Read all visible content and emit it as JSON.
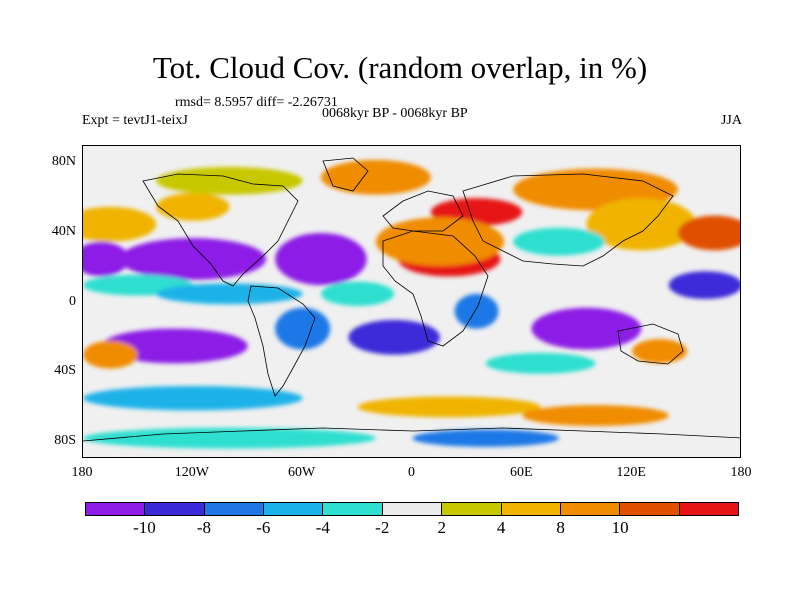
{
  "title": "Tot. Cloud Cov. (random overlap, in %)",
  "stats": "rmsd= 8.5957 diff= -2.26731",
  "experiment": "Expt = tevtJ1-teixJ",
  "period": "0068kyr BP - 0068kyr BP",
  "season": "JJA",
  "axes": {
    "y_ticks": [
      {
        "label": "80N",
        "lat": 80
      },
      {
        "label": "40N",
        "lat": 40
      },
      {
        "label": "0",
        "lat": 0
      },
      {
        "label": "40S",
        "lat": -40
      },
      {
        "label": "80S",
        "lat": -80
      }
    ],
    "x_ticks": [
      {
        "label": "180",
        "lon": -180
      },
      {
        "label": "120W",
        "lon": -120
      },
      {
        "label": "60W",
        "lon": -60
      },
      {
        "label": "0",
        "lon": 0
      },
      {
        "label": "60E",
        "lon": 60
      },
      {
        "label": "120E",
        "lon": 120
      },
      {
        "label": "180",
        "lon": 180
      }
    ],
    "lon_range": [
      -180,
      180
    ],
    "lat_range": [
      -90,
      90
    ]
  },
  "colorbar": {
    "colors": [
      "#8c1ce6",
      "#3c2ad8",
      "#1f78e6",
      "#1ab2e8",
      "#2fdfd0",
      "#ececec",
      "#c8c800",
      "#f0b400",
      "#f08c00",
      "#e05000",
      "#e61414"
    ],
    "labels": [
      {
        "text": "-10",
        "index": 1
      },
      {
        "text": "-8",
        "index": 2
      },
      {
        "text": "-6",
        "index": 3
      },
      {
        "text": "-4",
        "index": 4
      },
      {
        "text": "-2",
        "index": 5
      },
      {
        "text": "2",
        "index": 6
      },
      {
        "text": "4",
        "index": 7
      },
      {
        "text": "8",
        "index": 8
      },
      {
        "text": "10",
        "index": 9
      }
    ]
  },
  "field_regions": [
    {
      "name": "sahara-high",
      "color": "#e61414",
      "lon": 20,
      "lat": 25,
      "rlon": 28,
      "rlat": 10
    },
    {
      "name": "europe-high",
      "color": "#e61414",
      "lon": 35,
      "lat": 52,
      "rlon": 25,
      "rlat": 8
    },
    {
      "name": "n-africa-orange",
      "color": "#f08c00",
      "lon": 15,
      "lat": 35,
      "rlon": 35,
      "rlat": 14
    },
    {
      "name": "siberia-orange",
      "color": "#f08c00",
      "lon": 100,
      "lat": 65,
      "rlon": 45,
      "rlat": 12
    },
    {
      "name": "east-asia-orange",
      "color": "#f0b400",
      "lon": 125,
      "lat": 45,
      "rlon": 30,
      "rlat": 15
    },
    {
      "name": "pacific-n-red",
      "color": "#e05000",
      "lon": 165,
      "lat": 40,
      "rlon": 20,
      "rlat": 10
    },
    {
      "name": "pacific-nw-orange",
      "color": "#f0b400",
      "lon": -165,
      "lat": 45,
      "rlon": 25,
      "rlat": 10
    },
    {
      "name": "greenland-orange",
      "color": "#f08c00",
      "lon": -20,
      "lat": 72,
      "rlon": 30,
      "rlat": 10
    },
    {
      "name": "arctic-yellow",
      "color": "#c8c800",
      "lon": -100,
      "lat": 70,
      "rlon": 40,
      "rlat": 8
    },
    {
      "name": "canada-orange",
      "color": "#f0b400",
      "lon": -120,
      "lat": 55,
      "rlon": 20,
      "rlat": 8
    },
    {
      "name": "east-pacific-purple",
      "color": "#8c1ce6",
      "lon": -120,
      "lat": 25,
      "rlon": 40,
      "rlat": 12
    },
    {
      "name": "atlantic-purple",
      "color": "#8c1ce6",
      "lon": -50,
      "lat": 25,
      "rlon": 25,
      "rlat": 15
    },
    {
      "name": "west-pacific-purple",
      "color": "#8c1ce6",
      "lon": -170,
      "lat": 25,
      "rlon": 15,
      "rlat": 10
    },
    {
      "name": "indian-purple",
      "color": "#8c1ce6",
      "lon": 95,
      "lat": -15,
      "rlon": 30,
      "rlat": 12
    },
    {
      "name": "s-pacific-purple",
      "color": "#8c1ce6",
      "lon": -130,
      "lat": -25,
      "rlon": 40,
      "rlat": 10
    },
    {
      "name": "s-atlantic-purple",
      "color": "#3c2ad8",
      "lon": -10,
      "lat": -20,
      "rlon": 25,
      "rlat": 10
    },
    {
      "name": "aus-orange",
      "color": "#f08c00",
      "lon": 135,
      "lat": -28,
      "rlon": 15,
      "rlat": 7
    },
    {
      "name": "s-pacific-orange",
      "color": "#f08c00",
      "lon": -165,
      "lat": -30,
      "rlon": 15,
      "rlat": 8
    },
    {
      "name": "s-ocean-yellow",
      "color": "#f0b400",
      "lon": 20,
      "lat": -60,
      "rlon": 50,
      "rlat": 6
    },
    {
      "name": "s-ocean-orange",
      "color": "#f08c00",
      "lon": 100,
      "lat": -65,
      "rlon": 40,
      "rlat": 6
    },
    {
      "name": "s-ocean-cyan",
      "color": "#1ab2e8",
      "lon": -120,
      "lat": -55,
      "rlon": 60,
      "rlat": 7
    },
    {
      "name": "antarctic-cyan",
      "color": "#2fdfd0",
      "lon": -100,
      "lat": -78,
      "rlon": 80,
      "rlat": 6
    },
    {
      "name": "antarctic-blue",
      "color": "#1f78e6",
      "lon": 40,
      "lat": -78,
      "rlon": 40,
      "rlat": 5
    },
    {
      "name": "n-pacific-cyan",
      "color": "#2fdfd0",
      "lon": -150,
      "lat": 10,
      "rlon": 30,
      "rlat": 6
    },
    {
      "name": "eq-pacific-cyan",
      "color": "#1ab2e8",
      "lon": -100,
      "lat": 5,
      "rlon": 40,
      "rlat": 6
    },
    {
      "name": "tropical-atlantic-cyan",
      "color": "#2fdfd0",
      "lon": -30,
      "lat": 5,
      "rlon": 20,
      "rlat": 7
    },
    {
      "name": "asia-cyan",
      "color": "#2fdfd0",
      "lon": 80,
      "lat": 35,
      "rlon": 25,
      "rlat": 8
    },
    {
      "name": "africa-s-blue",
      "color": "#1f78e6",
      "lon": 35,
      "lat": -5,
      "rlon": 12,
      "rlat": 10
    },
    {
      "name": "s-america-blue",
      "color": "#1f78e6",
      "lon": -60,
      "lat": -15,
      "rlon": 15,
      "rlat": 12
    },
    {
      "name": "indian-cyan",
      "color": "#2fdfd0",
      "lon": 70,
      "lat": -35,
      "rlon": 30,
      "rlat": 6
    },
    {
      "name": "pacific-eq-blue",
      "color": "#3c2ad8",
      "lon": 160,
      "lat": 10,
      "rlon": 20,
      "rlat": 8
    }
  ]
}
